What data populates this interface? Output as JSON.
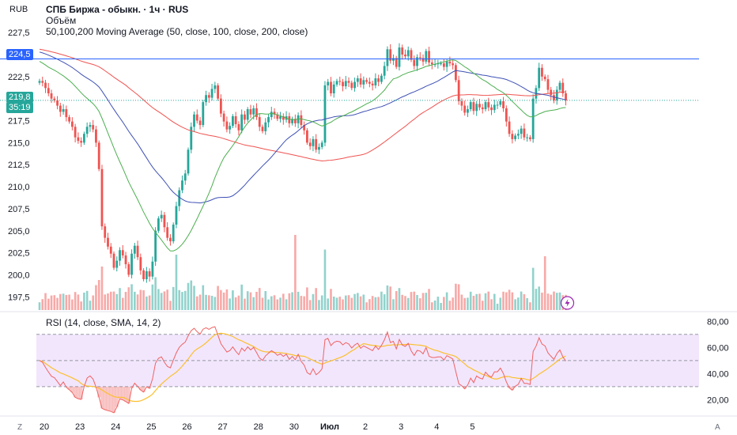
{
  "header": {
    "currency": "RUB",
    "title": "СПБ Биржа - обыкн. · 1ч · RUS",
    "volume_label": "Объём",
    "ma_label": "50,100,200 Moving Average (50, close, 100, close, 200, close)",
    "rsi_label": "RSI (14, close, SMA, 14, 2)"
  },
  "badges": {
    "last_price": "224,5",
    "current_price": "219,8",
    "countdown": "35:19"
  },
  "corners": {
    "left": "Z",
    "right": "A"
  },
  "colors": {
    "up": "#26a69a",
    "down": "#ef5350",
    "ma50": "#4caf50",
    "ma100": "#3f51b5",
    "ma200": "#ef5350",
    "rsi": "#f06262",
    "rsi_ma": "#fbc02d",
    "rsi_band": "#e9d5fb",
    "price_line": "#2962ff"
  },
  "chart_data": [
    {
      "type": "candlestick",
      "ylim": [
        196.0,
        228.5
      ],
      "y_ticks": [
        "227,5",
        "225,0",
        "222,5",
        "220,0",
        "217,5",
        "215,0",
        "212,5",
        "210,0",
        "207,5",
        "205,0",
        "202,5",
        "200,0",
        "197,5"
      ],
      "y_tick_values": [
        227.5,
        225.0,
        222.5,
        220.0,
        217.5,
        215.0,
        212.5,
        210.0,
        207.5,
        205.0,
        202.5,
        200.0,
        197.5
      ],
      "x_ticks": [
        "20",
        "23",
        "24",
        "25",
        "26",
        "27",
        "28",
        "30",
        "Июл",
        "2",
        "3",
        "4",
        "5"
      ],
      "x_tick_positions": [
        0,
        12,
        24,
        36,
        48,
        60,
        72,
        84,
        96,
        108,
        120,
        132,
        144
      ],
      "candles_close": [
        222.0,
        221.8,
        221.2,
        220.6,
        220.0,
        219.8,
        219.2,
        218.5,
        218.8,
        217.9,
        217.4,
        216.8,
        215.6,
        215.2,
        215.0,
        216.0,
        216.8,
        217.0,
        216.5,
        215.0,
        212.0,
        205.5,
        204.2,
        203.2,
        202.4,
        200.8,
        201.6,
        202.8,
        202.2,
        201.2,
        200.0,
        202.4,
        203.3,
        202.0,
        200.5,
        199.5,
        200.4,
        199.8,
        201.5,
        205.0,
        206.4,
        206.8,
        205.4,
        204.2,
        203.8,
        205.7,
        207.8,
        209.6,
        210.7,
        211.5,
        214.2,
        216.8,
        218.2,
        217.5,
        217.0,
        219.6,
        220.4,
        220.1,
        221.1,
        221.5,
        220.0,
        218.3,
        217.4,
        216.5,
        216.9,
        218.0,
        217.1,
        216.4,
        218.2,
        217.6,
        218.8,
        218.2,
        218.9,
        217.9,
        216.8,
        216.3,
        217.3,
        217.9,
        218.5,
        218.2,
        217.7,
        218.0,
        217.6,
        218.0,
        217.2,
        217.7,
        217.2,
        218.1,
        217.0,
        216.4,
        215.0,
        214.6,
        215.4,
        214.2,
        214.5,
        215.0,
        221.5,
        221.9,
        220.6,
        221.6,
        222.0,
        221.9,
        221.4,
        222.0,
        221.8,
        221.2,
        221.9,
        222.3,
        221.6,
        222.1,
        221.9,
        221.7,
        221.5,
        222.3,
        221.9,
        222.6,
        223.7,
        225.6,
        224.3,
        224.6,
        223.6,
        225.8,
        225.0,
        224.8,
        225.5,
        224.4,
        223.7,
        224.7,
        224.6,
        224.2,
        225.4,
        224.1,
        223.9,
        223.9,
        224.0,
        224.0,
        223.6,
        224.2,
        224.0,
        223.8,
        222.1,
        219.7,
        219.2,
        218.4,
        218.8,
        219.6,
        218.6,
        219.4,
        219.0,
        218.8,
        219.6,
        219.0,
        218.7,
        219.3,
        219.3,
        219.7,
        218.9,
        217.4,
        216.0,
        215.4,
        215.8,
        216.0,
        216.6,
        215.6,
        215.6,
        215.4,
        220.0,
        221.2,
        223.5,
        222.5,
        222.2,
        221.0,
        220.4,
        219.8,
        221.0,
        221.8,
        220.6,
        219.8
      ],
      "volume_max_index": 86,
      "y_current": 219.8,
      "y_last_line": 224.5
    },
    {
      "type": "line",
      "title": "RSI (14, close, SMA, 14, 2)",
      "ylim": [
        10,
        85
      ],
      "y_ticks": [
        "80,00",
        "60,00",
        "40,00",
        "20,00"
      ],
      "y_tick_values": [
        80,
        60,
        40,
        20
      ],
      "band": [
        30,
        70
      ],
      "mid": 50
    }
  ]
}
